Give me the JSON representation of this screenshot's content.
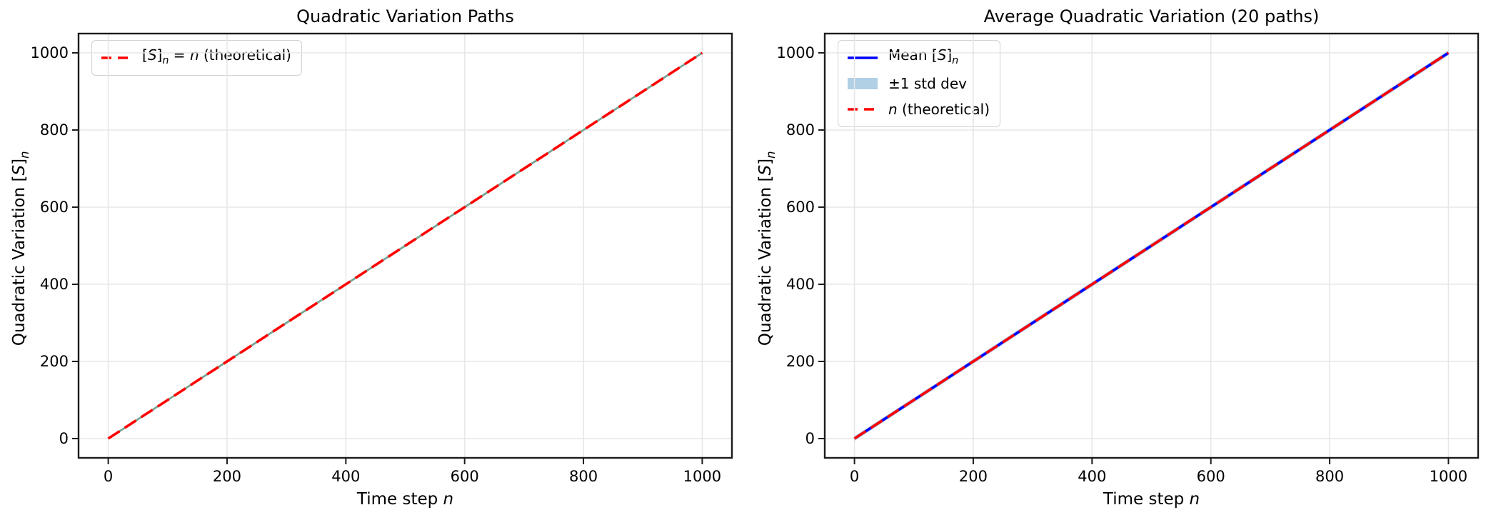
{
  "figure": {
    "background": "#ffffff",
    "text_color": "#000000",
    "grid_color": "#e7e7e7",
    "spine_color": "#1c1c1c"
  },
  "chart_data": [
    {
      "type": "line",
      "title": "Quadratic Variation Paths",
      "xlabel": "Time step *n*",
      "ylabel": "Quadratic Variation [*S*]_{n}",
      "xlim": [
        -50,
        1050
      ],
      "ylim": [
        -50,
        1050
      ],
      "xticks": [
        0,
        200,
        400,
        600,
        800,
        1000
      ],
      "yticks": [
        0,
        200,
        400,
        600,
        800,
        1000
      ],
      "grid": true,
      "legend_position": "upper-left",
      "series": [
        {
          "name": "sample-paths",
          "paths_count": 20,
          "in_legend": false,
          "color": "#76a492",
          "line_style": "solid",
          "line_width": 2.8,
          "x": [
            0,
            1000
          ],
          "y": [
            0,
            1000
          ]
        },
        {
          "name": "theoretical",
          "label": "[*S*]_{n} = *n* (theoretical)",
          "in_legend": true,
          "color": "#ff0000",
          "line_style": "dashed",
          "line_width": 3.6,
          "x": [
            0,
            1000
          ],
          "y": [
            0,
            1000
          ]
        }
      ]
    },
    {
      "type": "line",
      "title": "Average Quadratic Variation (20 paths)",
      "xlabel": "Time step *n*",
      "ylabel": "Quadratic Variation [*S*]_{n}",
      "xlim": [
        -50,
        1050
      ],
      "ylim": [
        -50,
        1050
      ],
      "xticks": [
        0,
        200,
        400,
        600,
        800,
        1000
      ],
      "yticks": [
        0,
        200,
        400,
        600,
        800,
        1000
      ],
      "grid": true,
      "legend_position": "upper-left",
      "series": [
        {
          "name": "std-band",
          "label": "±1 std dev",
          "in_legend": true,
          "color": "#b1cfe5",
          "line_style": "band",
          "band_halfwidth": 6,
          "x": [
            0,
            1000
          ],
          "y": [
            0,
            1000
          ]
        },
        {
          "name": "mean",
          "label": "Mean [*S*]_{n}",
          "in_legend": true,
          "color": "#0000ff",
          "line_style": "solid",
          "line_width": 3.6,
          "x": [
            0,
            1000
          ],
          "y": [
            0,
            1000
          ]
        },
        {
          "name": "theoretical",
          "label": "*n* (theoretical)",
          "in_legend": true,
          "color": "#ff0000",
          "line_style": "dashed",
          "line_width": 3.6,
          "x": [
            0,
            1000
          ],
          "y": [
            0,
            1000
          ]
        }
      ],
      "legend_order": [
        "mean",
        "std-band",
        "theoretical"
      ]
    }
  ]
}
